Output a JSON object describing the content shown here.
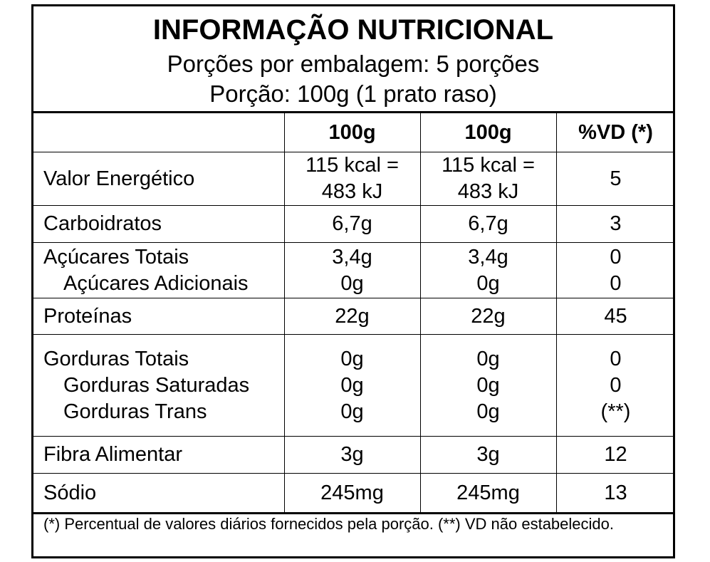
{
  "header": {
    "title": "INFORMAÇÃO NUTRICIONAL",
    "servings_per_package": "Porções por embalagem: 5 porções",
    "serving_size": "Porção: 100g (1 prato raso)"
  },
  "columns": {
    "name": "",
    "col1": "100g",
    "col2": "100g",
    "dv": "%VD (*)"
  },
  "rows": {
    "energy": {
      "name": "Valor Energético",
      "col1_line1": "115 kcal =",
      "col1_line2": "483 kJ",
      "col2_line1": "115 kcal =",
      "col2_line2": "483 kJ",
      "dv": "5"
    },
    "carbs": {
      "name": "Carboidratos",
      "col1": "6,7g",
      "col2": "6,7g",
      "dv": "3"
    },
    "total_sugars": {
      "name": "Açúcares Totais",
      "col1": "3,4g",
      "col2": "3,4g",
      "dv": "0"
    },
    "added_sugars": {
      "name": "Açúcares Adicionais",
      "col1": "0g",
      "col2": "0g",
      "dv": "0"
    },
    "protein": {
      "name": "Proteínas",
      "col1": "22g",
      "col2": "22g",
      "dv": "45"
    },
    "total_fat": {
      "name": "Gorduras Totais",
      "col1": "0g",
      "col2": "0g",
      "dv": "0"
    },
    "saturated_fat": {
      "name": "Gorduras Saturadas",
      "col1": "0g",
      "col2": "0g",
      "dv": "0"
    },
    "trans_fat": {
      "name": "Gorduras Trans",
      "col1": "0g",
      "col2": "0g",
      "dv": "(**)"
    },
    "fiber": {
      "name": "Fibra Alimentar",
      "col1": "3g",
      "col2": "3g",
      "dv": "12"
    },
    "sodium": {
      "name": "Sódio",
      "col1": "245mg",
      "col2": "245mg",
      "dv": "13"
    }
  },
  "footnote": " (*) Percentual de valores diários fornecidos pela porção. (**) VD não estabelecido."
}
